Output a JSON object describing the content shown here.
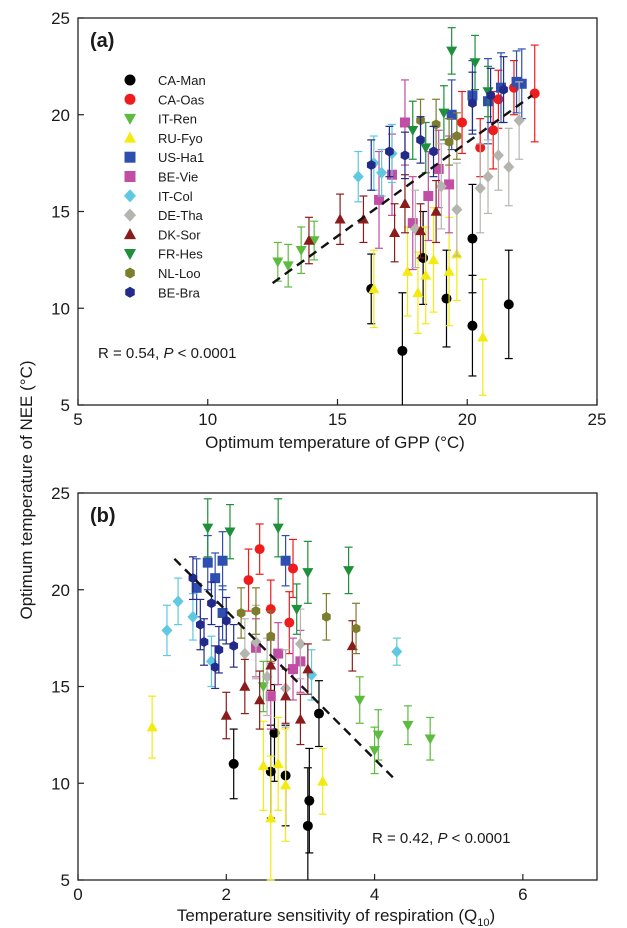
{
  "shared_ylabel": "Optimum temperature of NEE (°C)",
  "colors": {
    "CA-Man": "#000000",
    "CA-Oas": "#ee1c1c",
    "IT-Ren": "#5dbb3f",
    "RU-Fyo": "#f2ea10",
    "US-Ha1": "#2f4fb0",
    "BE-Vie": "#c24da5",
    "IT-Col": "#5ec9e0",
    "DE-Tha": "#b5b5b0",
    "DK-Sor": "#8a1c1c",
    "FR-Hes": "#1e8f3a",
    "NL-Loo": "#7d7d2e",
    "BE-Bra": "#222a8a"
  },
  "legend": [
    {
      "name": "CA-Man",
      "marker": "circle"
    },
    {
      "name": "CA-Oas",
      "marker": "circle"
    },
    {
      "name": "IT-Ren",
      "marker": "triangle-down"
    },
    {
      "name": "RU-Fyo",
      "marker": "triangle-up"
    },
    {
      "name": "US-Ha1",
      "marker": "square"
    },
    {
      "name": "BE-Vie",
      "marker": "square"
    },
    {
      "name": "IT-Col",
      "marker": "diamond"
    },
    {
      "name": "DE-Tha",
      "marker": "diamond"
    },
    {
      "name": "DK-Sor",
      "marker": "triangle-up"
    },
    {
      "name": "FR-Hes",
      "marker": "triangle-down"
    },
    {
      "name": "NL-Loo",
      "marker": "hexagon"
    },
    {
      "name": "BE-Bra",
      "marker": "hexagon"
    }
  ],
  "chart_data": [
    {
      "panel": "(a)",
      "type": "scatter",
      "xlabel": "Optimum temperature of GPP (°C)",
      "xlim": [
        5,
        25
      ],
      "ylim": [
        5,
        25
      ],
      "xticks": [
        "5",
        "10",
        "15",
        "20",
        "25"
      ],
      "yticks": [
        "5",
        "10",
        "15",
        "20",
        "25"
      ],
      "annotation": {
        "prefix": "R = 0.54, ",
        "italic": "P",
        "suffix": " < 0.0001"
      },
      "trendline": {
        "x": [
          12.5,
          22.5
        ],
        "y": [
          11.3,
          21.0
        ],
        "style": "dashed"
      },
      "series": [
        {
          "name": "CA-Man",
          "points": [
            [
              16.3,
              11.0,
              1.8
            ],
            [
              17.5,
              7.8,
              3.0
            ],
            [
              18.3,
              12.6,
              2.4
            ],
            [
              19.2,
              10.5,
              2.5
            ],
            [
              20.2,
              13.6,
              2.8
            ],
            [
              20.2,
              9.1,
              2.6
            ],
            [
              21.6,
              10.2,
              2.8
            ]
          ]
        },
        {
          "name": "CA-Oas",
          "points": [
            [
              19.8,
              19.6,
              1.6
            ],
            [
              20.5,
              18.3,
              1.5
            ],
            [
              21.0,
              19.2,
              2.0
            ],
            [
              21.8,
              21.4,
              1.4
            ],
            [
              22.6,
              21.1,
              2.5
            ],
            [
              21.2,
              20.8,
              1.5
            ]
          ]
        },
        {
          "name": "IT-Ren",
          "points": [
            [
              12.7,
              12.4,
              1.0
            ],
            [
              13.1,
              12.2,
              1.1
            ],
            [
              13.6,
              13.0,
              1.2
            ],
            [
              14.1,
              13.5,
              1.0
            ]
          ]
        },
        {
          "name": "RU-Fyo",
          "points": [
            [
              16.4,
              11.0,
              2.0
            ],
            [
              17.7,
              11.9,
              2.3
            ],
            [
              18.1,
              10.8,
              2.1
            ],
            [
              18.4,
              11.7,
              2.5
            ],
            [
              18.7,
              12.5,
              2.7
            ],
            [
              19.3,
              11.9,
              2.8
            ],
            [
              19.6,
              12.8,
              2.4
            ],
            [
              20.6,
              8.5,
              3.0
            ]
          ]
        },
        {
          "name": "US-Ha1",
          "points": [
            [
              20.2,
              21.0,
              1.8
            ],
            [
              20.8,
              20.7,
              2.2
            ],
            [
              21.3,
              21.4,
              1.8
            ],
            [
              21.9,
              21.7,
              1.6
            ],
            [
              22.1,
              21.6,
              1.8
            ],
            [
              19.4,
              20.0,
              1.8
            ]
          ]
        },
        {
          "name": "BE-Vie",
          "points": [
            [
              16.6,
              15.6,
              2.5
            ],
            [
              17.1,
              16.9,
              2.1
            ],
            [
              17.6,
              19.6,
              2.2
            ],
            [
              17.9,
              14.4,
              2.4
            ],
            [
              18.5,
              15.8,
              2.3
            ],
            [
              19.3,
              16.4,
              2.5
            ],
            [
              18.9,
              17.2,
              2.0
            ]
          ]
        },
        {
          "name": "IT-Col",
          "points": [
            [
              15.8,
              16.8,
              1.3
            ],
            [
              16.4,
              17.5,
              1.4
            ],
            [
              16.7,
              17.0,
              1.2
            ],
            [
              17.1,
              18.0,
              1.5
            ]
          ]
        },
        {
          "name": "DE-Tha",
          "points": [
            [
              18.0,
              14.1,
              2.0
            ],
            [
              19.0,
              16.3,
              2.2
            ],
            [
              19.6,
              15.1,
              2.4
            ],
            [
              20.5,
              16.2,
              2.3
            ],
            [
              21.2,
              17.9,
              1.8
            ],
            [
              21.6,
              17.3,
              2.0
            ],
            [
              22.0,
              19.7,
              2.0
            ],
            [
              20.8,
              16.8,
              1.9
            ]
          ]
        },
        {
          "name": "DK-Sor",
          "points": [
            [
              13.9,
              13.5,
              1.2
            ],
            [
              15.1,
              14.6,
              1.3
            ],
            [
              16.0,
              14.6,
              1.2
            ],
            [
              17.2,
              13.9,
              1.5
            ],
            [
              18.2,
              14.0,
              1.4
            ],
            [
              18.8,
              15.0,
              1.6
            ],
            [
              17.6,
              15.4,
              1.5
            ]
          ]
        },
        {
          "name": "FR-Hes",
          "points": [
            [
              17.9,
              19.2,
              1.5
            ],
            [
              18.4,
              18.3,
              1.3
            ],
            [
              19.4,
              23.3,
              1.2
            ],
            [
              20.3,
              22.7,
              1.4
            ],
            [
              19.1,
              20.1,
              1.4
            ],
            [
              20.8,
              21.2,
              1.3
            ]
          ]
        },
        {
          "name": "NL-Loo",
          "points": [
            [
              18.8,
              19.5,
              1.3
            ],
            [
              19.3,
              18.6,
              1.2
            ],
            [
              19.6,
              18.9,
              1.2
            ],
            [
              18.2,
              19.7,
              1.1
            ]
          ]
        },
        {
          "name": "BE-Bra",
          "points": [
            [
              16.3,
              17.4,
              1.3
            ],
            [
              17.0,
              18.1,
              1.3
            ],
            [
              17.6,
              17.9,
              1.2
            ],
            [
              18.2,
              18.7,
              1.2
            ],
            [
              18.7,
              18.1,
              1.3
            ],
            [
              20.2,
              20.6,
              1.6
            ],
            [
              20.9,
              21.0,
              1.4
            ],
            [
              21.4,
              21.3,
              1.7
            ]
          ]
        }
      ]
    },
    {
      "panel": "(b)",
      "type": "scatter",
      "xlabel": "Temperature sensitivity of respiration (Q",
      "xlabel_sub": "10",
      "xlabel_end": ")",
      "xlim": [
        0,
        7
      ],
      "ylim": [
        5,
        25
      ],
      "xticks": [
        "0",
        "2",
        "4",
        "6"
      ],
      "yticks": [
        "5",
        "10",
        "15",
        "20",
        "25"
      ],
      "annotation": {
        "prefix": "R = 0.42, ",
        "italic": "P",
        "suffix": " < 0.0001"
      },
      "trendline": {
        "x": [
          1.3,
          4.3
        ],
        "y": [
          21.6,
          10.1
        ],
        "style": "dashed"
      },
      "series": [
        {
          "name": "CA-Man",
          "points": [
            [
              2.1,
              11.0,
              1.8
            ],
            [
              2.6,
              10.6,
              2.4
            ],
            [
              2.65,
              12.6,
              2.5
            ],
            [
              2.8,
              10.4,
              2.6
            ],
            [
              3.1,
              7.8,
              3.0
            ],
            [
              3.12,
              9.1,
              2.7
            ],
            [
              3.25,
              13.6,
              1.7
            ]
          ]
        },
        {
          "name": "CA-Oas",
          "points": [
            [
              2.3,
              20.5,
              1.6
            ],
            [
              2.45,
              22.1,
              1.3
            ],
            [
              2.6,
              19.0,
              1.5
            ],
            [
              2.85,
              18.3,
              1.6
            ],
            [
              2.9,
              21.1,
              1.5
            ]
          ]
        },
        {
          "name": "IT-Ren",
          "points": [
            [
              3.8,
              14.3,
              1.2
            ],
            [
              4.0,
              11.7,
              1.2
            ],
            [
              4.05,
              12.5,
              1.3
            ],
            [
              4.45,
              13.0,
              1.0
            ],
            [
              4.75,
              12.3,
              1.1
            ],
            [
              2.5,
              15.0,
              1.3
            ]
          ]
        },
        {
          "name": "RU-Fyo",
          "points": [
            [
              1.0,
              12.9,
              1.6
            ],
            [
              2.5,
              10.9,
              2.3
            ],
            [
              2.6,
              8.2,
              3.2
            ],
            [
              2.8,
              9.9,
              2.9
            ],
            [
              3.3,
              10.1,
              1.7
            ],
            [
              2.7,
              11.0,
              2.4
            ]
          ]
        },
        {
          "name": "US-Ha1",
          "points": [
            [
              1.6,
              20.1,
              1.5
            ],
            [
              1.75,
              21.4,
              1.4
            ],
            [
              1.85,
              20.6,
              1.3
            ],
            [
              1.95,
              21.5,
              1.5
            ],
            [
              2.8,
              21.5,
              1.3
            ],
            [
              1.95,
              18.8,
              1.4
            ]
          ]
        },
        {
          "name": "BE-Vie",
          "points": [
            [
              2.4,
              17.0,
              1.5
            ],
            [
              2.6,
              14.5,
              1.7
            ],
            [
              2.9,
              15.9,
              1.6
            ],
            [
              3.0,
              16.3,
              1.6
            ],
            [
              2.7,
              16.7,
              1.6
            ]
          ]
        },
        {
          "name": "IT-Col",
          "points": [
            [
              1.2,
              17.9,
              1.3
            ],
            [
              1.35,
              19.4,
              1.2
            ],
            [
              1.55,
              18.6,
              1.2
            ],
            [
              1.8,
              16.3,
              1.3
            ],
            [
              3.15,
              15.6,
              1.3
            ],
            [
              4.3,
              16.8,
              0.7
            ]
          ]
        },
        {
          "name": "DE-Tha",
          "points": [
            [
              2.25,
              16.7,
              1.8
            ],
            [
              2.4,
              17.3,
              1.9
            ],
            [
              2.55,
              15.5,
              2.0
            ],
            [
              2.8,
              14.9,
              2.0
            ],
            [
              3.0,
              17.2,
              1.8
            ]
          ]
        },
        {
          "name": "DK-Sor",
          "points": [
            [
              2.0,
              13.5,
              1.2
            ],
            [
              2.25,
              15.0,
              1.4
            ],
            [
              2.45,
              14.3,
              1.5
            ],
            [
              2.6,
              16.1,
              1.3
            ],
            [
              2.8,
              14.5,
              1.4
            ],
            [
              3.0,
              13.3,
              1.3
            ],
            [
              3.7,
              17.1,
              1.3
            ],
            [
              3.1,
              15.9,
              1.3
            ]
          ]
        },
        {
          "name": "FR-Hes",
          "points": [
            [
              1.75,
              23.2,
              1.5
            ],
            [
              2.05,
              23.0,
              1.4
            ],
            [
              2.7,
              23.2,
              1.5
            ],
            [
              3.1,
              20.9,
              1.6
            ],
            [
              3.65,
              21.0,
              1.2
            ],
            [
              2.95,
              19.0,
              1.3
            ]
          ]
        },
        {
          "name": "NL-Loo",
          "points": [
            [
              2.2,
              18.8,
              1.3
            ],
            [
              2.4,
              18.9,
              1.2
            ],
            [
              2.6,
              17.6,
              1.3
            ],
            [
              3.35,
              18.6,
              1.2
            ],
            [
              3.75,
              18.0,
              1.3
            ]
          ]
        },
        {
          "name": "BE-Bra",
          "points": [
            [
              1.55,
              20.6,
              1.1
            ],
            [
              1.7,
              17.3,
              1.2
            ],
            [
              1.8,
              19.3,
              1.1
            ],
            [
              1.9,
              16.9,
              1.2
            ],
            [
              2.0,
              18.4,
              1.2
            ],
            [
              2.1,
              17.1,
              1.1
            ],
            [
              1.65,
              18.2,
              1.3
            ],
            [
              1.85,
              16.0,
              1.1
            ]
          ]
        }
      ]
    }
  ]
}
